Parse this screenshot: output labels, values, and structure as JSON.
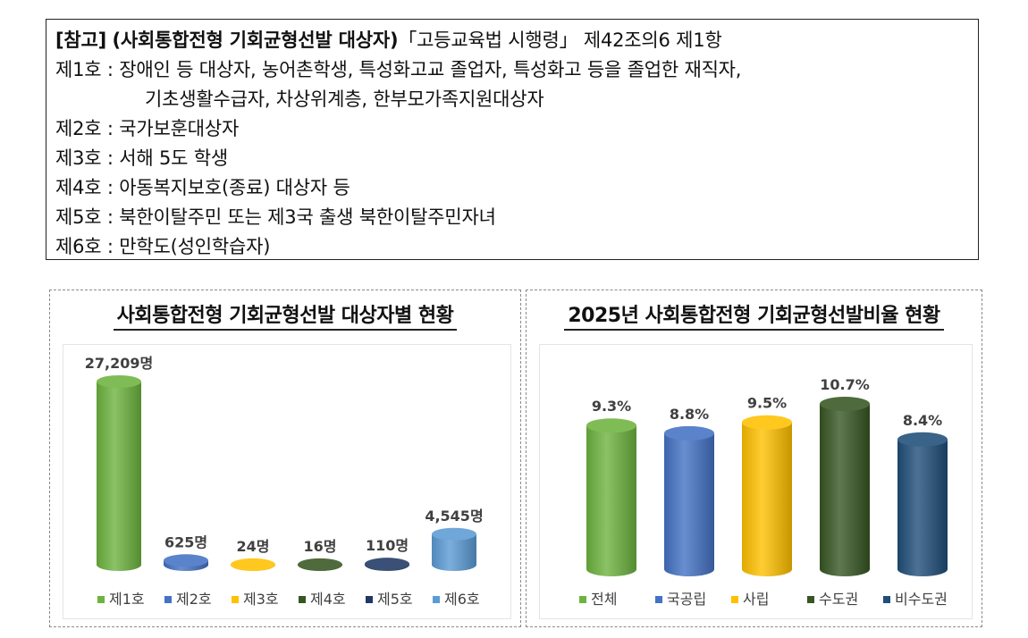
{
  "reference": {
    "bracket_label": "[참고]",
    "title": "(사회통합전형 기회균형선발 대상자)",
    "law_ref": "「고등교육법 시행령」 제42조의6 제1항",
    "items": [
      {
        "label": "제1호",
        "sep": ":",
        "text": "장애인 등 대상자, 농어촌학생, 특성화고교 졸업자, 특성화고 등을 졸업한 재직자,",
        "cont": "기초생활수급자, 차상위계층, 한부모가족지원대상자"
      },
      {
        "label": "제2호",
        "sep": ":",
        "text": "국가보훈대상자"
      },
      {
        "label": "제3호",
        "sep": ":",
        "text": "서해 5도 학생"
      },
      {
        "label": "제4호",
        "sep": ":",
        "text": "아동복지보호(종료) 대상자 등"
      },
      {
        "label": "제5호",
        "sep": ":",
        "text": "북한이탈주민 또는 제3국 출생 북한이탈주민자녀"
      },
      {
        "label": "제6호",
        "sep": ":",
        "text": "만학도(성인학습자)"
      }
    ]
  },
  "chart_data": [
    {
      "type": "bar",
      "title": "사회통합전형 기회균형선발 대상자별 현황",
      "categories": [
        "제1호",
        "제2호",
        "제3호",
        "제4호",
        "제5호",
        "제6호"
      ],
      "values": [
        27209,
        625,
        24,
        16,
        110,
        4545
      ],
      "value_labels": [
        "27,209명",
        "625명",
        "24명",
        "16명",
        "110명",
        "4,545명"
      ],
      "colors": [
        "#6db33f",
        "#4472c4",
        "#ffc000",
        "#375623",
        "#1f3864",
        "#5b9bd5"
      ],
      "legend": "bottom",
      "grid": false,
      "ylim": [
        0,
        27209
      ]
    },
    {
      "type": "bar",
      "title": "2025년 사회통합전형 기회균형선발비율 현황",
      "categories": [
        "전체",
        "국공립",
        "사립",
        "수도권",
        "비수도권"
      ],
      "values": [
        9.3,
        8.8,
        9.5,
        10.7,
        8.4
      ],
      "value_labels": [
        "9.3%",
        "8.8%",
        "9.5%",
        "10.7%",
        "8.4%"
      ],
      "colors": [
        "#6db33f",
        "#4472c4",
        "#ffc000",
        "#375623",
        "#1f4e79"
      ],
      "legend": "bottom",
      "grid": false,
      "ylim": [
        0,
        10.7
      ]
    }
  ]
}
